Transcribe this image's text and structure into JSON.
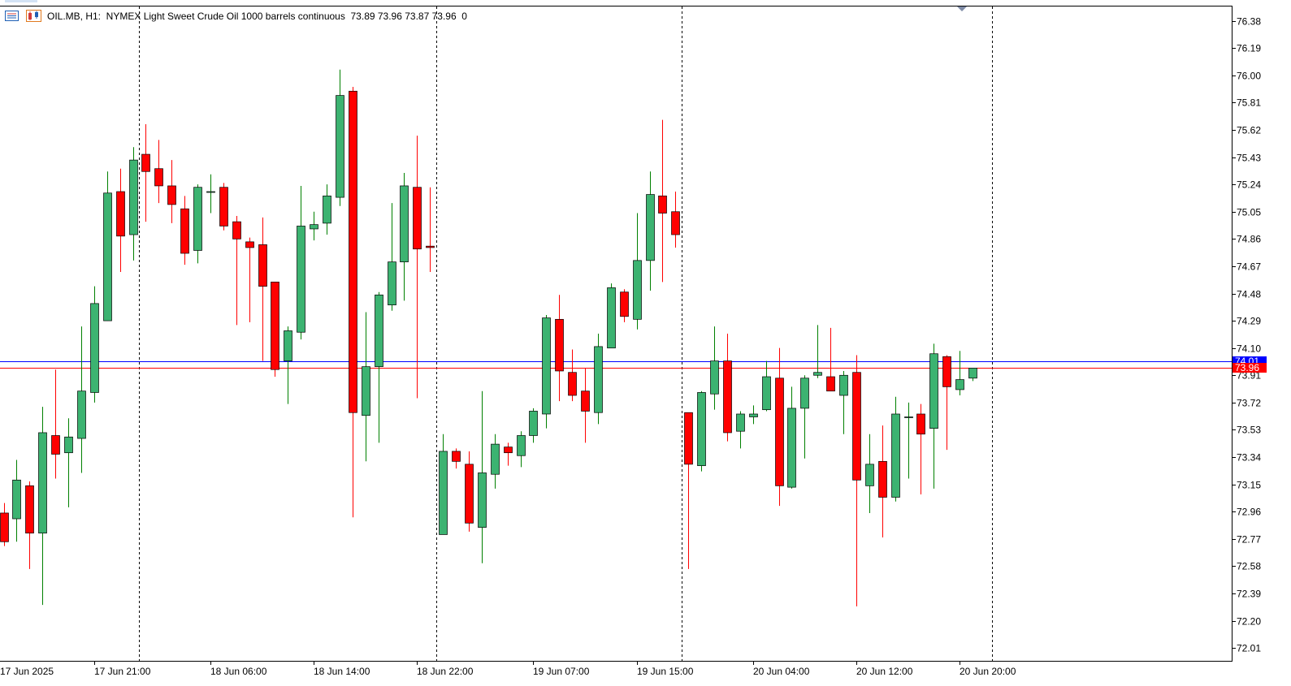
{
  "header": {
    "title": "OIL.MB, H1:  NYMEX Light Sweet Crude Oil 1000 barrels continuous  73.89 73.96 73.87 73.96  0"
  },
  "icons": [
    "chart-menu-icon",
    "chart-type-icon"
  ],
  "colors": {
    "bull": "#3cb371",
    "bear": "#ff0000",
    "wick_bull": "#008000",
    "wick_bear": "#ff0000",
    "outline": "#000000",
    "bid_line": "#ff0000",
    "ask_line": "#0000ff",
    "separator": "#000000",
    "background": "#ffffff"
  },
  "chart_data": {
    "type": "candlestick",
    "symbol": "OIL.MB",
    "timeframe": "H1",
    "title": "NYMEX Light Sweet Crude Oil 1000 barrels continuous",
    "last_ohlc": {
      "open": 73.89,
      "high": 73.96,
      "low": 73.87,
      "close": 73.96,
      "volume": 0
    },
    "ylim": [
      71.92,
      76.48
    ],
    "y_ticks": [
      76.38,
      76.19,
      76.0,
      75.81,
      75.62,
      75.43,
      75.24,
      75.05,
      74.86,
      74.67,
      74.48,
      74.29,
      74.1,
      73.91,
      73.72,
      73.53,
      73.34,
      73.15,
      72.96,
      72.77,
      72.58,
      72.39,
      72.2,
      72.01
    ],
    "x_labels": [
      {
        "index": -0.5,
        "label": "17 Jun 2025"
      },
      {
        "index": 7,
        "label": "17 Jun 21:00"
      },
      {
        "index": 16,
        "label": "18 Jun 06:00"
      },
      {
        "index": 24,
        "label": "18 Jun 14:00"
      },
      {
        "index": 32,
        "label": "18 Jun 22:00"
      },
      {
        "index": 41,
        "label": "19 Jun 07:00"
      },
      {
        "index": 49,
        "label": "19 Jun 15:00"
      },
      {
        "index": 58,
        "label": "20 Jun 04:00"
      },
      {
        "index": 66,
        "label": "20 Jun 12:00"
      },
      {
        "index": 74,
        "label": "20 Jun 20:00"
      }
    ],
    "day_separators": [
      10.5,
      33.5,
      52.5,
      76.5
    ],
    "price_lines": [
      {
        "name": "ask",
        "value": 74.01,
        "label": "74.01",
        "color": "#0000ff"
      },
      {
        "name": "bid",
        "value": 73.96,
        "label": "73.96",
        "color": "#ff0000"
      }
    ],
    "candles": [
      {
        "o": 72.95,
        "h": 73.02,
        "l": 72.72,
        "c": 72.75
      },
      {
        "o": 72.91,
        "h": 73.32,
        "l": 72.75,
        "c": 73.18
      },
      {
        "o": 73.14,
        "h": 73.17,
        "l": 72.56,
        "c": 72.81
      },
      {
        "o": 72.81,
        "h": 73.69,
        "l": 72.31,
        "c": 73.51
      },
      {
        "o": 73.49,
        "h": 73.95,
        "l": 73.19,
        "c": 73.36
      },
      {
        "o": 73.37,
        "h": 73.61,
        "l": 72.99,
        "c": 73.48
      },
      {
        "o": 73.47,
        "h": 74.25,
        "l": 73.23,
        "c": 73.8
      },
      {
        "o": 73.79,
        "h": 74.53,
        "l": 73.72,
        "c": 74.41
      },
      {
        "o": 74.29,
        "h": 75.33,
        "l": 74.29,
        "c": 75.18
      },
      {
        "o": 75.19,
        "h": 75.35,
        "l": 74.63,
        "c": 74.88
      },
      {
        "o": 74.89,
        "h": 75.5,
        "l": 74.71,
        "c": 75.41
      },
      {
        "o": 75.45,
        "h": 75.66,
        "l": 74.98,
        "c": 75.33
      },
      {
        "o": 75.35,
        "h": 75.55,
        "l": 75.11,
        "c": 75.23
      },
      {
        "o": 75.23,
        "h": 75.41,
        "l": 74.97,
        "c": 75.1
      },
      {
        "o": 75.07,
        "h": 75.16,
        "l": 74.68,
        "c": 74.76
      },
      {
        "o": 74.78,
        "h": 75.24,
        "l": 74.69,
        "c": 75.22
      },
      {
        "o": 75.19,
        "h": 75.31,
        "l": 75.04,
        "c": 75.19
      },
      {
        "o": 75.22,
        "h": 75.25,
        "l": 74.92,
        "c": 74.95
      },
      {
        "o": 74.98,
        "h": 75.02,
        "l": 74.26,
        "c": 74.86
      },
      {
        "o": 74.84,
        "h": 74.87,
        "l": 74.28,
        "c": 74.8
      },
      {
        "o": 74.82,
        "h": 75.01,
        "l": 74.01,
        "c": 74.53
      },
      {
        "o": 74.56,
        "h": 74.56,
        "l": 73.9,
        "c": 73.95
      },
      {
        "o": 74.01,
        "h": 74.25,
        "l": 73.71,
        "c": 74.22
      },
      {
        "o": 74.21,
        "h": 75.23,
        "l": 74.16,
        "c": 74.95
      },
      {
        "o": 74.93,
        "h": 75.05,
        "l": 74.85,
        "c": 74.96
      },
      {
        "o": 74.97,
        "h": 75.24,
        "l": 74.89,
        "c": 75.16
      },
      {
        "o": 75.15,
        "h": 76.04,
        "l": 75.09,
        "c": 75.86
      },
      {
        "o": 75.89,
        "h": 75.92,
        "l": 72.92,
        "c": 73.65
      },
      {
        "o": 73.63,
        "h": 74.35,
        "l": 73.31,
        "c": 73.97
      },
      {
        "o": 73.97,
        "h": 74.49,
        "l": 73.44,
        "c": 74.47
      },
      {
        "o": 74.4,
        "h": 75.11,
        "l": 74.36,
        "c": 74.7
      },
      {
        "o": 74.7,
        "h": 75.32,
        "l": 74.43,
        "c": 75.23
      },
      {
        "o": 75.22,
        "h": 75.58,
        "l": 73.75,
        "c": 74.79
      },
      {
        "o": 74.81,
        "h": 75.22,
        "l": 74.63,
        "c": 74.8
      },
      {
        "o": 72.8,
        "h": 73.5,
        "l": 72.8,
        "c": 73.38
      },
      {
        "o": 73.38,
        "h": 73.4,
        "l": 73.26,
        "c": 73.31
      },
      {
        "o": 73.29,
        "h": 73.38,
        "l": 72.82,
        "c": 72.88
      },
      {
        "o": 72.85,
        "h": 73.8,
        "l": 72.6,
        "c": 73.23
      },
      {
        "o": 73.22,
        "h": 73.5,
        "l": 73.12,
        "c": 73.43
      },
      {
        "o": 73.41,
        "h": 73.44,
        "l": 73.28,
        "c": 73.37
      },
      {
        "o": 73.35,
        "h": 73.52,
        "l": 73.27,
        "c": 73.49
      },
      {
        "o": 73.49,
        "h": 73.68,
        "l": 73.44,
        "c": 73.66
      },
      {
        "o": 73.64,
        "h": 74.33,
        "l": 73.54,
        "c": 74.31
      },
      {
        "o": 74.3,
        "h": 74.47,
        "l": 73.73,
        "c": 73.94
      },
      {
        "o": 73.93,
        "h": 74.09,
        "l": 73.73,
        "c": 73.77
      },
      {
        "o": 73.8,
        "h": 73.96,
        "l": 73.44,
        "c": 73.66
      },
      {
        "o": 73.65,
        "h": 74.2,
        "l": 73.57,
        "c": 74.11
      },
      {
        "o": 74.1,
        "h": 74.55,
        "l": 74.1,
        "c": 74.52
      },
      {
        "o": 74.49,
        "h": 74.51,
        "l": 74.28,
        "c": 74.32
      },
      {
        "o": 74.3,
        "h": 75.04,
        "l": 74.23,
        "c": 74.71
      },
      {
        "o": 74.71,
        "h": 75.33,
        "l": 74.5,
        "c": 75.17
      },
      {
        "o": 75.16,
        "h": 75.69,
        "l": 74.56,
        "c": 75.04
      },
      {
        "o": 75.05,
        "h": 75.19,
        "l": 74.8,
        "c": 74.89
      },
      {
        "o": 73.65,
        "h": 73.65,
        "l": 72.56,
        "c": 73.29
      },
      {
        "o": 73.28,
        "h": 73.8,
        "l": 73.24,
        "c": 73.79
      },
      {
        "o": 73.78,
        "h": 74.25,
        "l": 73.67,
        "c": 74.01
      },
      {
        "o": 74.01,
        "h": 74.2,
        "l": 73.45,
        "c": 73.51
      },
      {
        "o": 73.52,
        "h": 73.66,
        "l": 73.4,
        "c": 73.64
      },
      {
        "o": 73.62,
        "h": 73.7,
        "l": 73.57,
        "c": 73.64
      },
      {
        "o": 73.67,
        "h": 74.01,
        "l": 73.66,
        "c": 73.9
      },
      {
        "o": 73.89,
        "h": 74.1,
        "l": 73.0,
        "c": 73.14
      },
      {
        "o": 73.13,
        "h": 73.83,
        "l": 73.12,
        "c": 73.68
      },
      {
        "o": 73.68,
        "h": 73.91,
        "l": 73.33,
        "c": 73.89
      },
      {
        "o": 73.91,
        "h": 74.26,
        "l": 73.89,
        "c": 73.93
      },
      {
        "o": 73.9,
        "h": 74.24,
        "l": 73.8,
        "c": 73.8
      },
      {
        "o": 73.77,
        "h": 73.94,
        "l": 73.5,
        "c": 73.91
      },
      {
        "o": 73.93,
        "h": 74.05,
        "l": 72.3,
        "c": 73.18
      },
      {
        "o": 73.14,
        "h": 73.5,
        "l": 72.95,
        "c": 73.29
      },
      {
        "o": 73.31,
        "h": 73.56,
        "l": 72.78,
        "c": 73.06
      },
      {
        "o": 73.06,
        "h": 73.76,
        "l": 73.03,
        "c": 73.64
      },
      {
        "o": 73.62,
        "h": 73.72,
        "l": 73.19,
        "c": 73.62
      },
      {
        "o": 73.64,
        "h": 73.71,
        "l": 73.08,
        "c": 73.5
      },
      {
        "o": 73.54,
        "h": 74.13,
        "l": 73.12,
        "c": 74.06
      },
      {
        "o": 74.04,
        "h": 74.05,
        "l": 73.39,
        "c": 73.83
      },
      {
        "o": 73.81,
        "h": 74.08,
        "l": 73.77,
        "c": 73.88
      },
      {
        "o": 73.89,
        "h": 73.96,
        "l": 73.87,
        "c": 73.96
      }
    ]
  }
}
